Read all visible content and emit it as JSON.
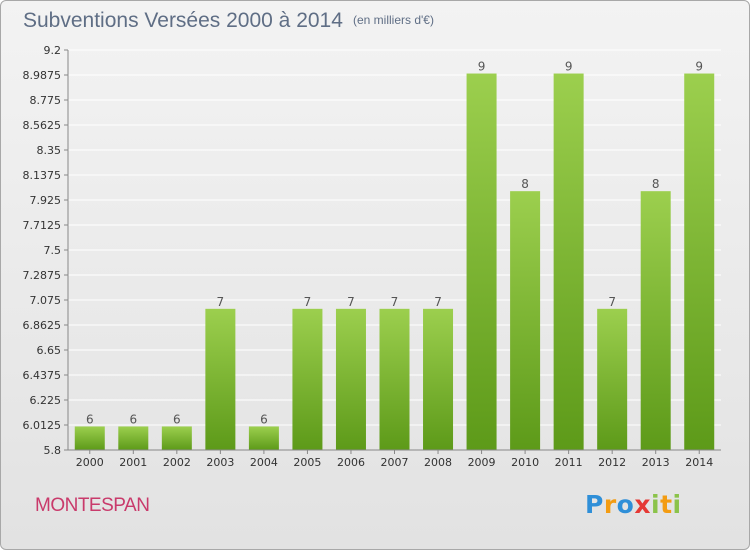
{
  "header": {
    "title": "Subventions Versées 2000 à 2014",
    "unit": "(en milliers d'€)"
  },
  "footer": {
    "commune": "MONTESPAN",
    "logo_letters": [
      "P",
      "r",
      "o",
      "x",
      "i",
      "t",
      "i"
    ],
    "logo_colors": [
      "#2f8fd8",
      "#f39c12",
      "#2f8fd8",
      "#e53935",
      "#8bc34a",
      "#f39c12",
      "#8bc34a"
    ]
  },
  "colors": {
    "bar_light": "#9ccf4e",
    "bar_dark": "#5d9a19",
    "grid": "#ffffff",
    "title": "#5f6e85",
    "commune": "#c93a6b"
  },
  "chart_data": {
    "type": "bar",
    "title": "Subventions Versées 2000 à 2014",
    "ylabel": "(en milliers d'€)",
    "categories": [
      "2000",
      "2001",
      "2002",
      "2003",
      "2004",
      "2005",
      "2006",
      "2007",
      "2008",
      "2009",
      "2010",
      "2011",
      "2012",
      "2013",
      "2014"
    ],
    "values": [
      6,
      6,
      6,
      7,
      6,
      7,
      7,
      7,
      7,
      9,
      8,
      9,
      7,
      8,
      9
    ],
    "ylim": [
      5.8,
      9.2
    ],
    "yticks": [
      "9.2",
      "8.9875",
      "8.775",
      "8.5625",
      "8.35",
      "8.1375",
      "7.925",
      "7.7125",
      "7.5",
      "7.2875",
      "7.075",
      "6.8625",
      "6.65",
      "6.4375",
      "6.225",
      "6.0125",
      "5.8"
    ],
    "grid": true,
    "data_labels": [
      "6",
      "6",
      "6",
      "7",
      "6",
      "7",
      "7",
      "7",
      "7",
      "9",
      "8",
      "9",
      "7",
      "8",
      "9"
    ]
  }
}
